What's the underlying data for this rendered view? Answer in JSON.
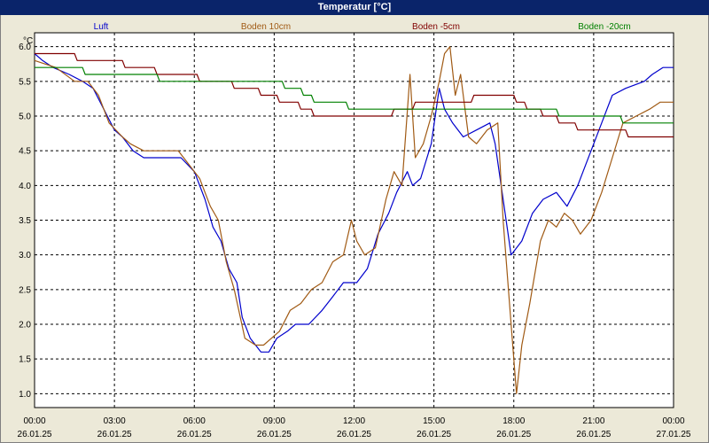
{
  "window": {
    "title": "Temperatur [°C]"
  },
  "chart_data": {
    "type": "line",
    "title": "Temperatur [°C]",
    "ylabel": "°C",
    "ylim": [
      0.8,
      6.2
    ],
    "yticks": [
      "1.0",
      "1.5",
      "2.0",
      "2.5",
      "3.0",
      "3.5",
      "4.0",
      "4.5",
      "5.0",
      "5.5",
      "6.0"
    ],
    "xlim": [
      0,
      24
    ],
    "xticks": [
      {
        "time": "00:00",
        "date": "26.01.25"
      },
      {
        "time": "03:00",
        "date": "26.01.25"
      },
      {
        "time": "06:00",
        "date": "26.01.25"
      },
      {
        "time": "09:00",
        "date": "26.01.25"
      },
      {
        "time": "12:00",
        "date": "26.01.25"
      },
      {
        "time": "15:00",
        "date": "26.01.25"
      },
      {
        "time": "18:00",
        "date": "26.01.25"
      },
      {
        "time": "21:00",
        "date": "26.01.25"
      },
      {
        "time": "00:00",
        "date": "27.01.25"
      }
    ],
    "grid": true,
    "legend_position": "top",
    "series": [
      {
        "name": "Luft",
        "color": "#0000cc",
        "points": [
          [
            0,
            5.9
          ],
          [
            0.3,
            5.8
          ],
          [
            0.7,
            5.7
          ],
          [
            1.3,
            5.6
          ],
          [
            1.8,
            5.5
          ],
          [
            2.2,
            5.4
          ],
          [
            2.6,
            5.1
          ],
          [
            3.0,
            4.8
          ],
          [
            3.3,
            4.7
          ],
          [
            3.7,
            4.5
          ],
          [
            4.1,
            4.4
          ],
          [
            5.5,
            4.4
          ],
          [
            6.0,
            4.2
          ],
          [
            6.4,
            3.8
          ],
          [
            6.7,
            3.4
          ],
          [
            7.0,
            3.2
          ],
          [
            7.3,
            2.8
          ],
          [
            7.6,
            2.6
          ],
          [
            7.8,
            2.1
          ],
          [
            8.1,
            1.8
          ],
          [
            8.5,
            1.6
          ],
          [
            8.8,
            1.6
          ],
          [
            9.1,
            1.8
          ],
          [
            9.5,
            1.9
          ],
          [
            9.8,
            2.0
          ],
          [
            10.3,
            2.0
          ],
          [
            10.8,
            2.2
          ],
          [
            11.2,
            2.4
          ],
          [
            11.6,
            2.6
          ],
          [
            12.1,
            2.6
          ],
          [
            12.5,
            2.8
          ],
          [
            12.9,
            3.3
          ],
          [
            13.3,
            3.6
          ],
          [
            13.6,
            3.9
          ],
          [
            14.0,
            4.2
          ],
          [
            14.2,
            4.0
          ],
          [
            14.5,
            4.1
          ],
          [
            14.9,
            4.6
          ],
          [
            15.2,
            5.4
          ],
          [
            15.4,
            5.1
          ],
          [
            15.7,
            4.9
          ],
          [
            16.1,
            4.7
          ],
          [
            16.6,
            4.8
          ],
          [
            17.1,
            4.9
          ],
          [
            17.3,
            4.6
          ],
          [
            17.6,
            3.8
          ],
          [
            17.9,
            3.0
          ],
          [
            18.3,
            3.2
          ],
          [
            18.7,
            3.6
          ],
          [
            19.1,
            3.8
          ],
          [
            19.6,
            3.9
          ],
          [
            20.0,
            3.7
          ],
          [
            20.4,
            4.0
          ],
          [
            20.9,
            4.5
          ],
          [
            21.3,
            4.9
          ],
          [
            21.7,
            5.3
          ],
          [
            22.2,
            5.4
          ],
          [
            22.9,
            5.5
          ],
          [
            23.2,
            5.6
          ],
          [
            23.6,
            5.7
          ],
          [
            24.0,
            5.7
          ]
        ]
      },
      {
        "name": "Boden 10cm",
        "color": "#a05a14",
        "points": [
          [
            0,
            5.8
          ],
          [
            0.8,
            5.7
          ],
          [
            1.5,
            5.5
          ],
          [
            2.0,
            5.5
          ],
          [
            2.4,
            5.3
          ],
          [
            2.8,
            4.9
          ],
          [
            3.3,
            4.7
          ],
          [
            3.6,
            4.6
          ],
          [
            4.1,
            4.5
          ],
          [
            5.4,
            4.5
          ],
          [
            5.8,
            4.3
          ],
          [
            6.2,
            4.1
          ],
          [
            6.6,
            3.7
          ],
          [
            6.9,
            3.5
          ],
          [
            7.2,
            2.9
          ],
          [
            7.5,
            2.5
          ],
          [
            7.9,
            1.8
          ],
          [
            8.3,
            1.7
          ],
          [
            8.6,
            1.7
          ],
          [
            8.9,
            1.8
          ],
          [
            9.2,
            1.9
          ],
          [
            9.6,
            2.2
          ],
          [
            10.0,
            2.3
          ],
          [
            10.4,
            2.5
          ],
          [
            10.8,
            2.6
          ],
          [
            11.2,
            2.9
          ],
          [
            11.6,
            3.0
          ],
          [
            11.9,
            3.5
          ],
          [
            12.1,
            3.2
          ],
          [
            12.4,
            3.0
          ],
          [
            12.8,
            3.1
          ],
          [
            13.2,
            3.8
          ],
          [
            13.5,
            4.2
          ],
          [
            13.8,
            4.0
          ],
          [
            14.1,
            5.6
          ],
          [
            14.3,
            4.4
          ],
          [
            14.6,
            4.6
          ],
          [
            14.9,
            5.0
          ],
          [
            15.2,
            5.5
          ],
          [
            15.4,
            5.9
          ],
          [
            15.6,
            6.0
          ],
          [
            15.8,
            5.3
          ],
          [
            16.0,
            5.6
          ],
          [
            16.3,
            4.7
          ],
          [
            16.6,
            4.6
          ],
          [
            17.0,
            4.8
          ],
          [
            17.4,
            4.9
          ],
          [
            17.6,
            3.5
          ],
          [
            17.9,
            2.0
          ],
          [
            18.1,
            1.0
          ],
          [
            18.3,
            1.7
          ],
          [
            18.6,
            2.3
          ],
          [
            19.0,
            3.2
          ],
          [
            19.3,
            3.5
          ],
          [
            19.6,
            3.4
          ],
          [
            19.9,
            3.6
          ],
          [
            20.2,
            3.5
          ],
          [
            20.5,
            3.3
          ],
          [
            20.9,
            3.5
          ],
          [
            21.3,
            3.9
          ],
          [
            21.7,
            4.4
          ],
          [
            22.1,
            4.9
          ],
          [
            22.6,
            5.0
          ],
          [
            23.1,
            5.1
          ],
          [
            23.5,
            5.2
          ],
          [
            24.0,
            5.2
          ]
        ]
      },
      {
        "name": "Boden -5cm",
        "color": "#800000",
        "points": [
          [
            0,
            5.9
          ],
          [
            1.5,
            5.9
          ],
          [
            1.6,
            5.8
          ],
          [
            3.3,
            5.8
          ],
          [
            3.4,
            5.7
          ],
          [
            4.5,
            5.7
          ],
          [
            4.6,
            5.6
          ],
          [
            6.1,
            5.6
          ],
          [
            6.2,
            5.5
          ],
          [
            7.4,
            5.5
          ],
          [
            7.5,
            5.4
          ],
          [
            8.4,
            5.4
          ],
          [
            8.5,
            5.3
          ],
          [
            9.1,
            5.3
          ],
          [
            9.2,
            5.2
          ],
          [
            9.9,
            5.2
          ],
          [
            10.0,
            5.1
          ],
          [
            10.4,
            5.1
          ],
          [
            10.5,
            5.0
          ],
          [
            13.4,
            5.0
          ],
          [
            13.5,
            5.1
          ],
          [
            14.2,
            5.1
          ],
          [
            14.3,
            5.2
          ],
          [
            16.4,
            5.2
          ],
          [
            16.5,
            5.3
          ],
          [
            18.0,
            5.3
          ],
          [
            18.1,
            5.2
          ],
          [
            18.4,
            5.2
          ],
          [
            18.5,
            5.1
          ],
          [
            19.0,
            5.1
          ],
          [
            19.1,
            5.0
          ],
          [
            19.6,
            5.0
          ],
          [
            19.7,
            4.9
          ],
          [
            20.3,
            4.9
          ],
          [
            20.4,
            4.8
          ],
          [
            22.2,
            4.8
          ],
          [
            22.3,
            4.7
          ],
          [
            24.0,
            4.7
          ]
        ]
      },
      {
        "name": "Boden -20cm",
        "color": "#008000",
        "points": [
          [
            0,
            5.7
          ],
          [
            1.8,
            5.7
          ],
          [
            1.9,
            5.6
          ],
          [
            4.6,
            5.6
          ],
          [
            4.7,
            5.5
          ],
          [
            9.3,
            5.5
          ],
          [
            9.4,
            5.4
          ],
          [
            10.0,
            5.4
          ],
          [
            10.1,
            5.3
          ],
          [
            10.4,
            5.3
          ],
          [
            10.5,
            5.2
          ],
          [
            11.7,
            5.2
          ],
          [
            11.8,
            5.1
          ],
          [
            19.6,
            5.1
          ],
          [
            19.7,
            5.0
          ],
          [
            22.0,
            5.0
          ],
          [
            22.1,
            4.9
          ],
          [
            24.0,
            4.9
          ]
        ]
      }
    ]
  }
}
